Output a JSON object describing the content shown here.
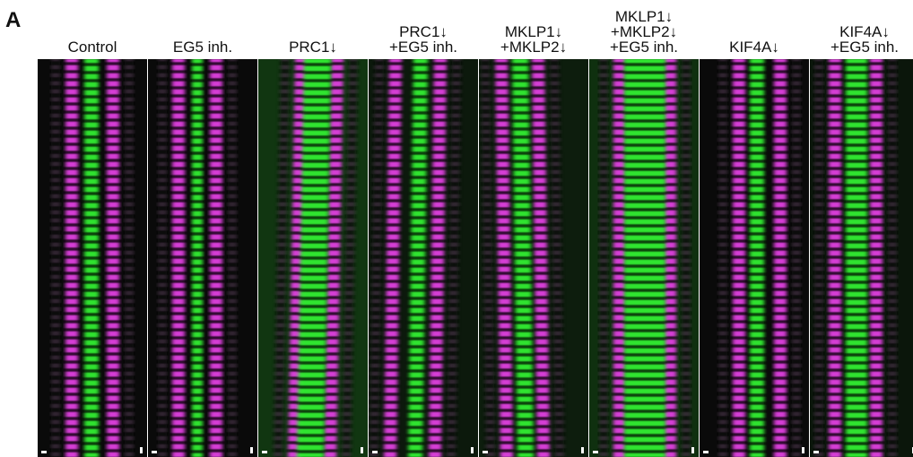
{
  "panel_label": "A",
  "columns": [
    {
      "lines": [
        "Control"
      ]
    },
    {
      "lines": [
        "EG5 inh."
      ]
    },
    {
      "lines": [
        "PRC1↓"
      ]
    },
    {
      "lines": [
        "PRC1↓",
        "+EG5 inh."
      ]
    },
    {
      "lines": [
        "MKLP1↓",
        "+MKLP2↓"
      ]
    },
    {
      "lines": [
        "MKLP1↓",
        "+MKLP2↓",
        "+EG5 inh."
      ]
    },
    {
      "lines": [
        "KIF4A↓"
      ]
    },
    {
      "lines": [
        "KIF4A↓",
        "+EG5 inh."
      ]
    }
  ]
}
